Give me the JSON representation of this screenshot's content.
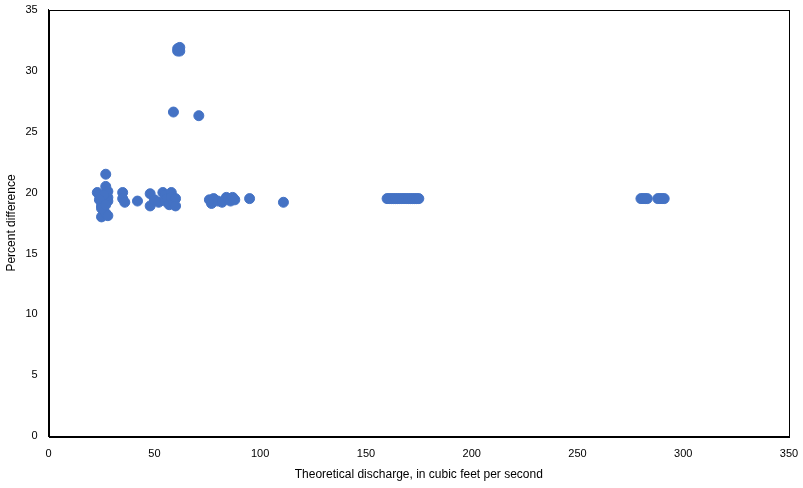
{
  "chart_data": {
    "type": "scatter",
    "x_label": "Theoretical discharge, in cubic feet per second",
    "y_label": "Percent difference",
    "x": [
      23,
      24,
      25,
      25,
      25,
      26,
      26,
      27,
      27,
      27,
      27,
      28,
      28,
      28,
      28,
      26,
      24,
      25,
      27,
      35,
      35,
      36,
      42,
      48,
      48,
      50,
      52,
      54,
      55,
      55,
      56,
      57,
      58,
      58,
      59,
      59,
      60,
      60,
      61,
      61,
      62,
      62,
      71,
      76,
      77,
      78,
      80,
      82,
      84,
      85,
      86,
      87,
      88,
      95,
      111,
      160,
      161,
      162,
      163,
      164,
      165,
      166,
      167,
      168,
      169,
      170,
      171,
      172,
      173,
      174,
      175,
      280,
      281,
      282,
      283,
      288,
      289,
      290,
      291
    ],
    "values": [
      20.0,
      19.8,
      18.0,
      19.5,
      18.9,
      19.2,
      18.5,
      21.5,
      20.5,
      19.9,
      18.3,
      19.6,
      18.1,
      20.1,
      19.3,
      19.8,
      19.4,
      18.7,
      19.0,
      20.0,
      19.5,
      19.2,
      19.3,
      19.9,
      18.9,
      19.4,
      19.2,
      20.0,
      19.8,
      19.3,
      19.5,
      19.0,
      20.0,
      19.6,
      26.6,
      19.2,
      19.5,
      18.9,
      31.8,
      31.6,
      31.6,
      31.9,
      26.3,
      19.4,
      19.1,
      19.5,
      19.3,
      19.2,
      19.6,
      19.5,
      19.3,
      19.6,
      19.4,
      19.5,
      19.2,
      19.5,
      19.5,
      19.5,
      19.5,
      19.5,
      19.5,
      19.5,
      19.5,
      19.5,
      19.5,
      19.5,
      19.5,
      19.5,
      19.5,
      19.5,
      19.5,
      19.5,
      19.5,
      19.5,
      19.5,
      19.5,
      19.5,
      19.5,
      19.5
    ],
    "color": "#4472c4",
    "marker": "circle",
    "xlim": [
      0,
      350
    ],
    "xticks": [
      0,
      50,
      100,
      150,
      200,
      250,
      300,
      350
    ],
    "ylim": [
      0,
      35
    ],
    "yticks": [
      0,
      5,
      10,
      15,
      20,
      25,
      30,
      35
    ],
    "grid": false
  }
}
